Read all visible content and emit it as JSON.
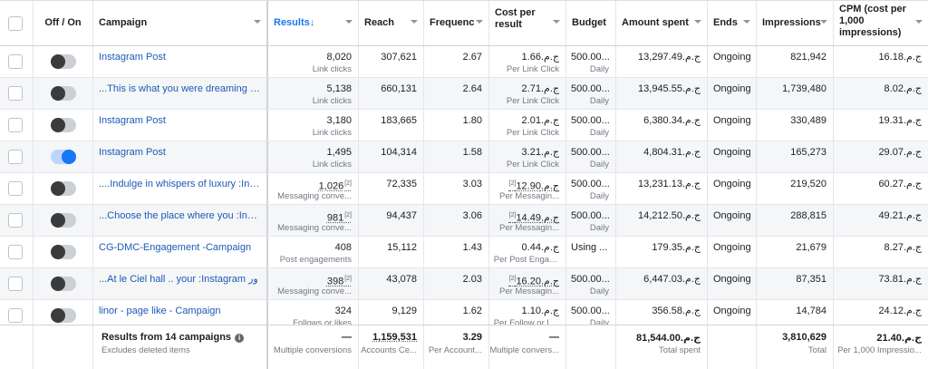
{
  "header": {
    "off_on": "Off / On",
    "campaign": "Campaign",
    "results": "Results↓",
    "reach": "Reach",
    "frequency": "Frequenc",
    "cost_per_result": "Cost per result",
    "budget": "Budget",
    "amount_spent": "Amount spent",
    "ends": "Ends",
    "impressions": "Impressions",
    "cpm": "CPM (cost per 1,000 impressions)"
  },
  "rows": [
    {
      "on": false,
      "campaign": "Instagram Post",
      "results": "8,020",
      "results_label": "Link clicks",
      "results_fn": "",
      "reach": "307,621",
      "frequency": "2.67",
      "cost": "ج.م.1.66",
      "cost_fn": "",
      "cost_label": "Per Link Click",
      "budget": "500.00...",
      "budget_label": "Daily",
      "spent": "ج.م.13,297.49",
      "ends": "Ongoing",
      "impressions": "821,942",
      "cpm": "ج.م.16.18"
    },
    {
      "on": false,
      "campaign": "...This is what you were dreaming :I...",
      "results": "5,138",
      "results_label": "Link clicks",
      "results_fn": "",
      "reach": "660,131",
      "frequency": "2.64",
      "cost": "ج.م.2.71",
      "cost_fn": "",
      "cost_label": "Per Link Click",
      "budget": "500.00...",
      "budget_label": "Daily",
      "spent": "ج.م.13,945.55",
      "ends": "Ongoing",
      "impressions": "1,739,480",
      "cpm": "ج.م.8.02"
    },
    {
      "on": false,
      "campaign": "Instagram Post",
      "results": "3,180",
      "results_label": "Link clicks",
      "results_fn": "",
      "reach": "183,665",
      "frequency": "1.80",
      "cost": "ج.م.2.01",
      "cost_fn": "",
      "cost_label": "Per Link Click",
      "budget": "500.00...",
      "budget_label": "Daily",
      "spent": "ج.م.6,380.34",
      "ends": "Ongoing",
      "impressions": "330,489",
      "cpm": "ج.م.19.31"
    },
    {
      "on": true,
      "campaign": "Instagram Post",
      "results": "1,495",
      "results_label": "Link clicks",
      "results_fn": "",
      "reach": "104,314",
      "frequency": "1.58",
      "cost": "ج.م.3.21",
      "cost_fn": "",
      "cost_label": "Per Link Click",
      "budget": "500.00...",
      "budget_label": "Daily",
      "spent": "ج.م.4,804.31",
      "ends": "Ongoing",
      "impressions": "165,273",
      "cpm": "ج.م.29.07"
    },
    {
      "on": false,
      "campaign": "....Indulge in whispers of luxury :Inst...",
      "results": "1,026",
      "results_label": "Messaging conve...",
      "results_fn": "[2]",
      "reach": "72,335",
      "frequency": "3.03",
      "cost": "ج.م.12.90",
      "cost_fn": "[2]",
      "cost_label": "Per Messagin...",
      "budget": "500.00...",
      "budget_label": "Daily",
      "spent": "ج.م.13,231.13",
      "ends": "Ongoing",
      "impressions": "219,520",
      "cpm": "ج.م.60.27"
    },
    {
      "on": false,
      "campaign": "...Choose the place where you :Inst...",
      "results": "981",
      "results_label": "Messaging conve...",
      "results_fn": "[2]",
      "reach": "94,437",
      "frequency": "3.06",
      "cost": "ج.م.14.49",
      "cost_fn": "[2]",
      "cost_label": "Per Messagin...",
      "budget": "500.00...",
      "budget_label": "Daily",
      "spent": "ج.م.14,212.50",
      "ends": "Ongoing",
      "impressions": "288,815",
      "cpm": "ج.م.49.21"
    },
    {
      "on": false,
      "campaign": "CG-DMC-Engagement -Campaign",
      "results": "408",
      "results_label": "Post engagements",
      "results_fn": "",
      "reach": "15,112",
      "frequency": "1.43",
      "cost": "ج.م.0.44",
      "cost_fn": "",
      "cost_label": "Per Post Engage...",
      "budget": "Using ...",
      "budget_label": "",
      "spent": "ج.م.179.35",
      "ends": "Ongoing",
      "impressions": "21,679",
      "cpm": "ج.م.8.27"
    },
    {
      "on": false,
      "campaign": "...At le Ciel hall .. your :Instagram ور",
      "results": "398",
      "results_label": "Messaging conve...",
      "results_fn": "[2]",
      "reach": "43,078",
      "frequency": "2.03",
      "cost": "ج.م.16.20",
      "cost_fn": "[2]",
      "cost_label": "Per Messagin...",
      "budget": "500.00...",
      "budget_label": "Daily",
      "spent": "ج.م.6,447.03",
      "ends": "Ongoing",
      "impressions": "87,351",
      "cpm": "ج.م.73.81"
    },
    {
      "on": false,
      "campaign": "linor - page like - Campaign",
      "results": "324",
      "results_label": "Follows or likes",
      "results_fn": "",
      "reach": "9,129",
      "frequency": "1.62",
      "cost": "ج.م.1.10",
      "cost_fn": "",
      "cost_label": "Per Follow or like",
      "budget": "500.00...",
      "budget_label": "Daily",
      "spent": "ج.م.356.58",
      "ends": "Ongoing",
      "impressions": "14,784",
      "cpm": "ج.م.24.12"
    }
  ],
  "footer": {
    "title": "Results from 14 campaigns",
    "info_glyph": "i",
    "subtitle": "Excludes deleted items",
    "results": "—",
    "results_label": "Multiple conversions",
    "reach": "1,159,531",
    "reach_label": "Accounts Ce...",
    "frequency": "3.29",
    "frequency_label": "Per Account...",
    "cost": "—",
    "cost_label": "Multiple convers...",
    "spent": "ج.م.81,544.00",
    "spent_label": "Total spent",
    "impressions": "3,810,629",
    "impressions_label": "Total",
    "cpm": "ج.م.21.40",
    "cpm_label": "Per 1,000 Impressio..."
  }
}
